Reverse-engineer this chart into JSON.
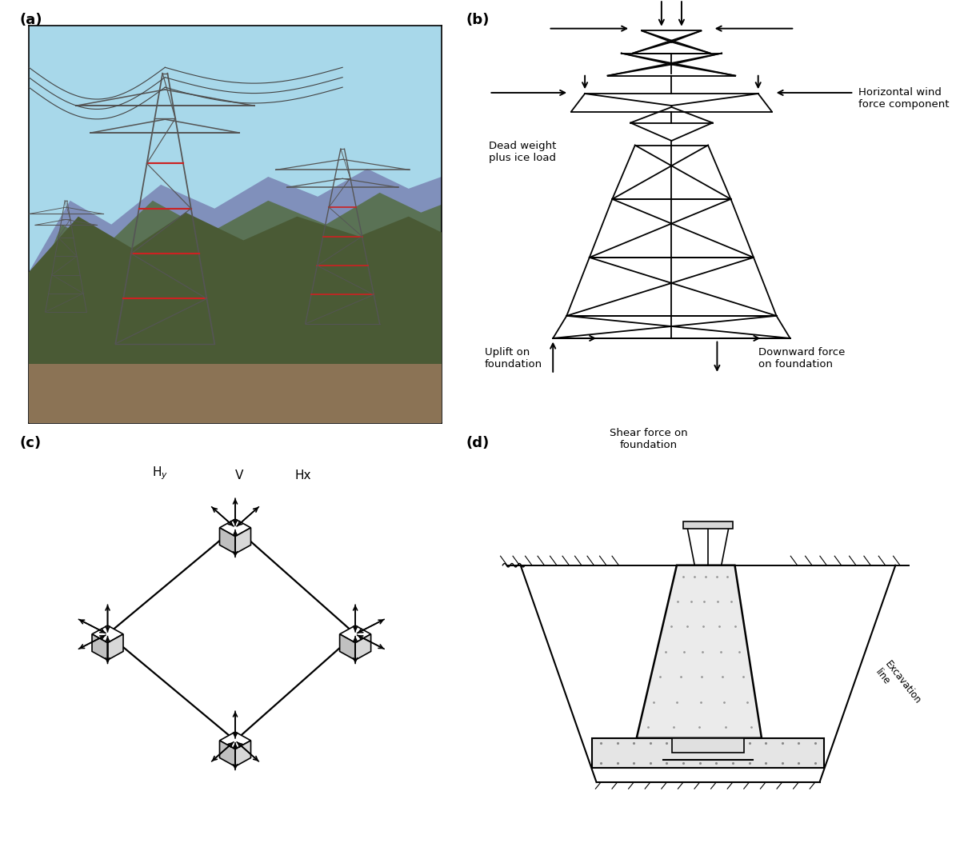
{
  "fig_width": 12.0,
  "fig_height": 10.69,
  "background_color": "#ffffff",
  "label_a": "(a)",
  "label_b": "(b)",
  "label_c": "(c)",
  "label_d": "(d)",
  "label_fontsize": 13,
  "label_fontweight": "bold",
  "annotation_fontsize": 9.5,
  "panel_b_annotations": {
    "horizontal_wind": "Horizontal wind\nforce component",
    "dead_weight": "Dead weight\nplus ice load",
    "uplift": "Uplift on\nfoundation",
    "downward": "Downward force\non foundation",
    "shear": "Shear force on\nfoundation"
  },
  "panel_d_label": "Excavation\nline",
  "photo_sky_top": "#A8D8EA",
  "photo_sky_bot": "#C8E8F8",
  "photo_mtn1": "#7B8FBB",
  "photo_mtn2": "#6B8060",
  "photo_mtn3": "#4A6040",
  "photo_ground": "#8B7355"
}
